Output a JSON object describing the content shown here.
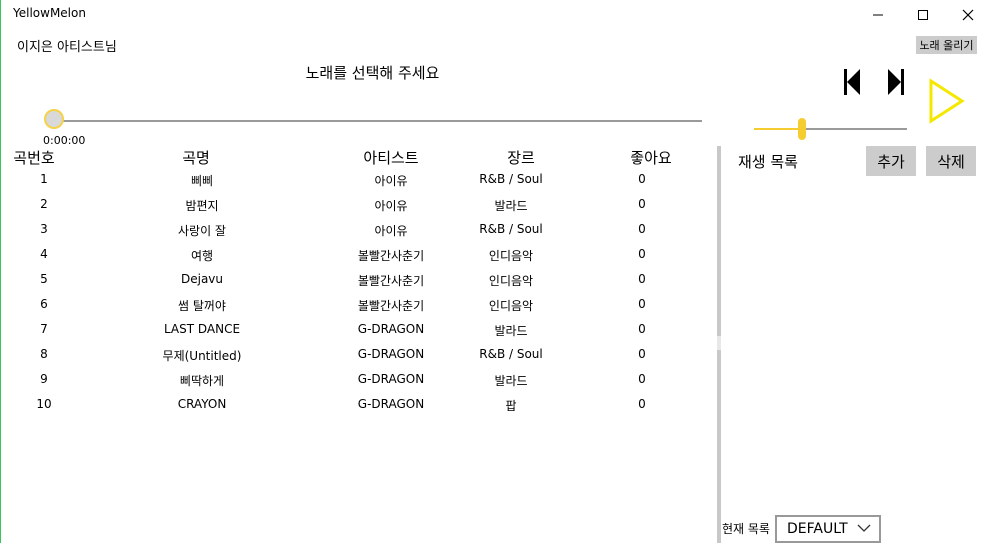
{
  "window": {
    "title": "YellowMelon"
  },
  "user": {
    "label": "이지은 아티스트님",
    "upload_button": "노래 올리기"
  },
  "player": {
    "now_playing": "노래를 선택해 주세요",
    "time": "0:00:00",
    "progress": 0,
    "volume": 0.3
  },
  "table": {
    "headers": [
      "곡번호",
      "곡명",
      "아티스트",
      "장르",
      "좋아요"
    ],
    "rows": [
      {
        "no": "1",
        "title": "삐삐",
        "artist": "아이유",
        "genre": "R&B / Soul",
        "likes": "0"
      },
      {
        "no": "2",
        "title": "밤편지",
        "artist": "아이유",
        "genre": "발라드",
        "likes": "0"
      },
      {
        "no": "3",
        "title": "사랑이 잘",
        "artist": "아이유",
        "genre": "R&B / Soul",
        "likes": "0"
      },
      {
        "no": "4",
        "title": "여행",
        "artist": "볼빨간사춘기",
        "genre": "인디음악",
        "likes": "0"
      },
      {
        "no": "5",
        "title": "Dejavu",
        "artist": "볼빨간사춘기",
        "genre": "인디음악",
        "likes": "0"
      },
      {
        "no": "6",
        "title": "썸 탈꺼야",
        "artist": "볼빨간사춘기",
        "genre": "인디음악",
        "likes": "0"
      },
      {
        "no": "7",
        "title": "LAST DANCE",
        "artist": "G-DRAGON",
        "genre": "발라드",
        "likes": "0"
      },
      {
        "no": "8",
        "title": "무제(Untitled)",
        "artist": "G-DRAGON",
        "genre": "R&B / Soul",
        "likes": "0"
      },
      {
        "no": "9",
        "title": "삐딱하게",
        "artist": "G-DRAGON",
        "genre": "발라드",
        "likes": "0"
      },
      {
        "no": "10",
        "title": "CRAYON",
        "artist": "G-DRAGON",
        "genre": "팝",
        "likes": "0"
      }
    ]
  },
  "playlist": {
    "title": "재생 목록",
    "add_button": "추가",
    "delete_button": "삭제",
    "current_label": "현재 목록",
    "current_value": "DEFAULT"
  },
  "icons": {
    "minimize": "minimize-icon",
    "maximize": "maximize-icon",
    "close": "close-icon",
    "previous": "skip-previous-icon",
    "next": "skip-next-icon",
    "play": "play-icon",
    "dropdown": "chevron-down-icon"
  },
  "colors": {
    "accent": "#f5cd30",
    "play_icon": "#f5e800",
    "window_border": "#3cc45a",
    "button_bg": "#cccccc"
  }
}
